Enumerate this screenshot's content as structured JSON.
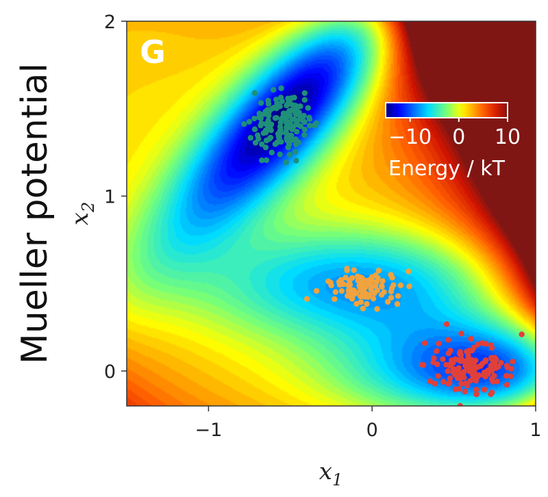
{
  "row_title": "Mueller potential",
  "panel_letter": "G",
  "chart_data": {
    "type": "heatmap",
    "xlim": [
      -1.5,
      1.0
    ],
    "ylim": [
      -0.2,
      2.0
    ],
    "x_ticks": [
      {
        "value": -1,
        "label": "−1"
      },
      {
        "value": 0,
        "label": "0"
      },
      {
        "value": 1,
        "label": "1"
      }
    ],
    "y_ticks": [
      {
        "value": 0,
        "label": "0"
      },
      {
        "value": 1,
        "label": "1"
      },
      {
        "value": 2,
        "label": "2"
      }
    ],
    "xlabel": {
      "base": "x",
      "sub": "1"
    },
    "ylabel": {
      "base": "x",
      "sub": "2"
    },
    "colormap": "jet",
    "background_color": "#7f1614",
    "energy_clip_max": 10,
    "colorbar": {
      "range": [
        -15,
        10
      ],
      "ticks": [
        {
          "value": -10,
          "label": "−10"
        },
        {
          "value": 0,
          "label": "0"
        },
        {
          "value": 10,
          "label": "10"
        }
      ],
      "label": "Energy / kT",
      "placement": "top-right (inside plot)"
    },
    "minima": [
      {
        "x": -0.55,
        "y": 1.42,
        "depth": -14.6
      },
      {
        "x": -0.05,
        "y": 0.47,
        "depth": -10.5
      },
      {
        "x": 0.62,
        "y": 0.03,
        "depth": -14.7
      }
    ],
    "sample_clusters": [
      {
        "color": "#1f8f7a",
        "center": [
          -0.55,
          1.42
        ],
        "spread": [
          0.1,
          0.09
        ],
        "count": 150
      },
      {
        "color": "#f0a33e",
        "center": [
          -0.05,
          0.47
        ],
        "spread": [
          0.1,
          0.05
        ],
        "count": 110
      },
      {
        "color": "#e0403a",
        "center": [
          0.6,
          0.03
        ],
        "spread": [
          0.14,
          0.07
        ],
        "count": 140
      }
    ]
  }
}
